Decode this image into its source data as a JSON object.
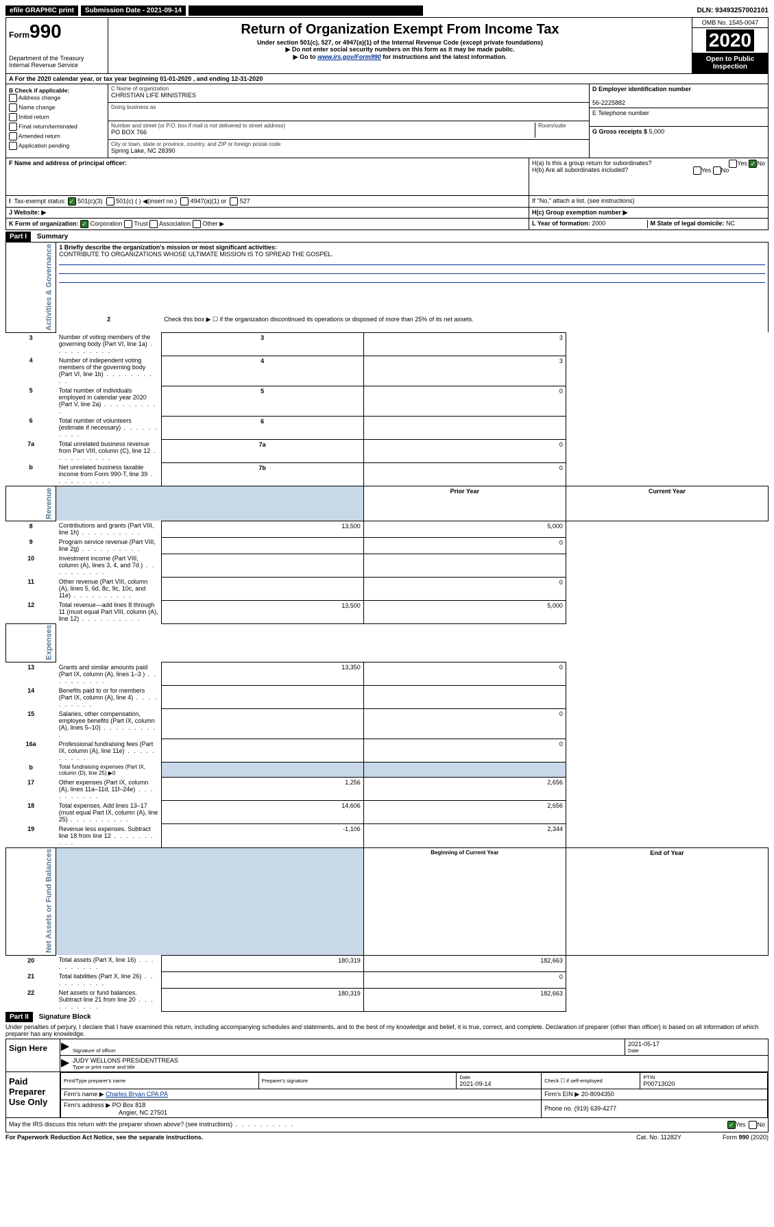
{
  "topbar": {
    "efile": "efile GRAPHIC print",
    "submission": "Submission Date - 2021-09-14",
    "dln": "DLN: 93493257002101"
  },
  "header": {
    "form_prefix": "Form",
    "form_number": "990",
    "title": "Return of Organization Exempt From Income Tax",
    "subtitle": "Under section 501(c), 527, or 4947(a)(1) of the Internal Revenue Code (except private foundations)",
    "note1": "▶ Do not enter social security numbers on this form as it may be made public.",
    "note2_prefix": "▶ Go to ",
    "note2_link": "www.irs.gov/Form990",
    "note2_suffix": " for instructions and the latest information.",
    "dept": "Department of the Treasury",
    "irs": "Internal Revenue Service",
    "omb": "OMB No. 1545-0047",
    "year": "2020",
    "open": "Open to Public Inspection"
  },
  "cal_year": "A For the 2020 calendar year, or tax year beginning 01-01-2020   , and ending 12-31-2020",
  "checkboxes": {
    "header": "B Check if applicable:",
    "addr": "Address change",
    "name": "Name change",
    "initial": "Initial return",
    "final": "Final return/terminated",
    "amended": "Amended return",
    "app": "Application pending"
  },
  "entity": {
    "name_label": "C Name of organization",
    "name": "CHRISTIAN LIFE MINISTRIES",
    "dba_label": "Doing business as",
    "addr_label": "Number and street (or P.O. box if mail is not delivered to street address)",
    "room_label": "Room/suite",
    "addr": "PO BOX 766",
    "city_label": "City or town, state or province, country, and ZIP or foreign postal code",
    "city": "Spring Lake, NC  28390",
    "officer_label": "F Name and address of principal officer:"
  },
  "right": {
    "ein_label": "D Employer identification number",
    "ein": "56-2225882",
    "tel_label": "E Telephone number",
    "gross_label": "G Gross receipts $",
    "gross": "5,000",
    "ha": "H(a)  Is this a group return for subordinates?",
    "hb": "H(b)  Are all subordinates included?",
    "hb_note": "If \"No,\" attach a list. (see instructions)",
    "hc": "H(c)  Group exemption number ▶",
    "yes": "Yes",
    "no": "No"
  },
  "status": {
    "label": "Tax-exempt status:",
    "c3": "501(c)(3)",
    "c": "501(c) (  ) ◀(insert no.)",
    "a1": "4947(a)(1) or",
    "s527": "527"
  },
  "website_label": "J    Website: ▶",
  "k_line": "K Form of organization:",
  "k_corp": "Corporation",
  "k_trust": "Trust",
  "k_assoc": "Association",
  "k_other": "Other ▶",
  "l_year_label": "L Year of formation:",
  "l_year": "2000",
  "m_state_label": "M State of legal domicile:",
  "m_state": "NC",
  "part1": {
    "header": "Part I",
    "title": "Summary",
    "side_gov": "Activities & Governance",
    "side_rev": "Revenue",
    "side_exp": "Expenses",
    "side_net": "Net Assets or Fund Balances",
    "line1_label": "1  Briefly describe the organization's mission or most significant activities:",
    "line1_text": "CONTRIBUTE TO ORGANIZATIONS WHOSE ULTIMATE MISSION IS TO SPREAD THE GOSPEL.",
    "line2": "Check this box ▶ ☐  if the organization discontinued its operations or disposed of more than 25% of its net assets.",
    "rows_top": [
      {
        "n": "3",
        "desc": "Number of voting members of the governing body (Part VI, line 1a)",
        "box": "3",
        "val": "3"
      },
      {
        "n": "4",
        "desc": "Number of independent voting members of the governing body (Part VI, line 1b)",
        "box": "4",
        "val": "3"
      },
      {
        "n": "5",
        "desc": "Total number of individuals employed in calendar year 2020 (Part V, line 2a)",
        "box": "5",
        "val": "0"
      },
      {
        "n": "6",
        "desc": "Total number of volunteers (estimate if necessary)",
        "box": "6",
        "val": ""
      },
      {
        "n": "7a",
        "desc": "Total unrelated business revenue from Part VIII, column (C), line 12",
        "box": "7a",
        "val": "0"
      },
      {
        "n": "b",
        "desc": "Net unrelated business taxable income from Form 990-T, line 39",
        "box": "7b",
        "val": "0"
      }
    ],
    "col_prior": "Prior Year",
    "col_current": "Current Year",
    "revenue_rows": [
      {
        "n": "8",
        "desc": "Contributions and grants (Part VIII, line 1h)",
        "prior": "13,500",
        "cur": "5,000"
      },
      {
        "n": "9",
        "desc": "Program service revenue (Part VIII, line 2g)",
        "prior": "",
        "cur": "0"
      },
      {
        "n": "10",
        "desc": "Investment income (Part VIII, column (A), lines 3, 4, and 7d )",
        "prior": "",
        "cur": ""
      },
      {
        "n": "11",
        "desc": "Other revenue (Part VIII, column (A), lines 5, 6d, 8c, 9c, 10c, and 11e)",
        "prior": "",
        "cur": "0"
      },
      {
        "n": "12",
        "desc": "Total revenue—add lines 8 through 11 (must equal Part VIII, column (A), line 12)",
        "prior": "13,500",
        "cur": "5,000"
      }
    ],
    "expense_rows": [
      {
        "n": "13",
        "desc": "Grants and similar amounts paid (Part IX, column (A), lines 1–3 )",
        "prior": "13,350",
        "cur": "0"
      },
      {
        "n": "14",
        "desc": "Benefits paid to or for members (Part IX, column (A), line 4)",
        "prior": "",
        "cur": ""
      },
      {
        "n": "15",
        "desc": "Salaries, other compensation, employee benefits (Part IX, column (A), lines 5–10)",
        "prior": "",
        "cur": "0"
      },
      {
        "n": "16a",
        "desc": "Professional fundraising fees (Part IX, column (A), line 11e)",
        "prior": "",
        "cur": "0"
      },
      {
        "n": "b",
        "desc": "Total fundraising expenses (Part IX, column (D), line 25) ▶0",
        "prior": "SHADE",
        "cur": "SHADE"
      },
      {
        "n": "17",
        "desc": "Other expenses (Part IX, column (A), lines 11a–11d, 11f–24e)",
        "prior": "1,256",
        "cur": "2,656"
      },
      {
        "n": "18",
        "desc": "Total expenses. Add lines 13–17 (must equal Part IX, column (A), line 25)",
        "prior": "14,606",
        "cur": "2,656"
      },
      {
        "n": "19",
        "desc": "Revenue less expenses. Subtract line 18 from line 12",
        "prior": "-1,106",
        "cur": "2,344"
      }
    ],
    "col_begin": "Beginning of Current Year",
    "col_end": "End of Year",
    "net_rows": [
      {
        "n": "20",
        "desc": "Total assets (Part X, line 16)",
        "prior": "180,319",
        "cur": "182,663"
      },
      {
        "n": "21",
        "desc": "Total liabilities (Part X, line 26)",
        "prior": "",
        "cur": "0"
      },
      {
        "n": "22",
        "desc": "Net assets or fund balances. Subtract line 21 from line 20",
        "prior": "180,319",
        "cur": "182,663"
      }
    ]
  },
  "part2": {
    "header": "Part II",
    "title": "Signature Block",
    "perjury": "Under penalties of perjury, I declare that I have examined this return, including accompanying schedules and statements, and to the best of my knowledge and belief, it is true, correct, and complete. Declaration of preparer (other than officer) is based on all information of which preparer has any knowledge."
  },
  "sign": {
    "label": "Sign Here",
    "sig_officer": "Signature of officer",
    "date": "2021-05-17",
    "date_label": "Date",
    "name": "JUDY WELLONS PRESIDENTTREAS",
    "name_label": "Type or print name and title"
  },
  "preparer": {
    "label": "Paid Preparer Use Only",
    "print_label": "Print/Type preparer's name",
    "sig_label": "Preparer's signature",
    "date_label": "Date",
    "date": "2021-09-14",
    "check_label": "Check ☐ if self-employed",
    "ptin_label": "PTIN",
    "ptin": "P00713020",
    "firm_name_label": "Firm's name    ▶",
    "firm_name": "Charles Bryan CPA PA",
    "firm_ein_label": "Firm's EIN ▶",
    "firm_ein": "20-8094350",
    "firm_addr_label": "Firm's address ▶",
    "firm_addr1": "PO Box 818",
    "firm_addr2": "Angier, NC  27501",
    "phone_label": "Phone no.",
    "phone": "(919) 639-4277"
  },
  "discuss": "May the IRS discuss this return with the preparer shown above? (see instructions)",
  "footer": {
    "pra": "For Paperwork Reduction Act Notice, see the separate instructions.",
    "cat": "Cat. No. 11282Y",
    "form": "Form 990 (2020)"
  }
}
